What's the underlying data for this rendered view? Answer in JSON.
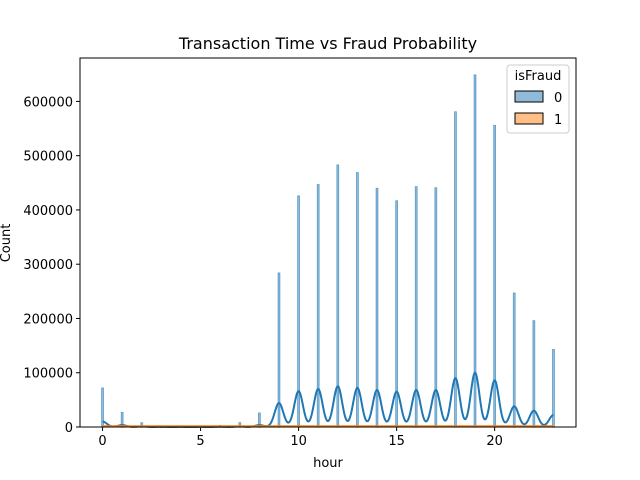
{
  "chart_data": {
    "type": "histogram",
    "title": "Transaction Time vs Fraud Probability",
    "xlabel": "hour",
    "ylabel": "Count",
    "xlim": [
      -1.15,
      24.15
    ],
    "ylim": [
      0,
      680000
    ],
    "xticks": [
      0,
      5,
      10,
      15,
      20
    ],
    "yticks": [
      0,
      100000,
      200000,
      300000,
      400000,
      500000,
      600000
    ],
    "legend": {
      "title": "isFraud",
      "placement": "top-right",
      "entries": [
        "0",
        "1"
      ]
    },
    "series": [
      {
        "name": "0",
        "color": "#1f77b4",
        "x": [
          0,
          1,
          2,
          3,
          4,
          5,
          6,
          7,
          8,
          9,
          10,
          11,
          12,
          13,
          14,
          15,
          16,
          17,
          18,
          19,
          20,
          21,
          22,
          23
        ],
        "values": [
          72000,
          27000,
          8000,
          2000,
          1000,
          1000,
          3000,
          8000,
          26000,
          284000,
          426000,
          447000,
          483000,
          469000,
          440000,
          417000,
          443000,
          441000,
          581000,
          649000,
          556000,
          247000,
          196000,
          143000
        ],
        "kde_peaks": [
          10000,
          3500,
          1000,
          300,
          150,
          150,
          400,
          1000,
          3500,
          44000,
          66000,
          70000,
          75000,
          72000,
          68000,
          65000,
          68000,
          68000,
          90000,
          100000,
          86000,
          38000,
          30000,
          22000
        ]
      },
      {
        "name": "1",
        "color": "#ff7f0e",
        "x": [
          0,
          1,
          2,
          3,
          4,
          5,
          6,
          7,
          8,
          9,
          10,
          11,
          12,
          13,
          14,
          15,
          16,
          17,
          18,
          19,
          20,
          21,
          22,
          23
        ],
        "values": [
          100,
          60,
          40,
          30,
          30,
          30,
          30,
          40,
          60,
          200,
          300,
          300,
          300,
          300,
          300,
          300,
          300,
          300,
          400,
          400,
          400,
          200,
          200,
          150
        ]
      }
    ]
  }
}
